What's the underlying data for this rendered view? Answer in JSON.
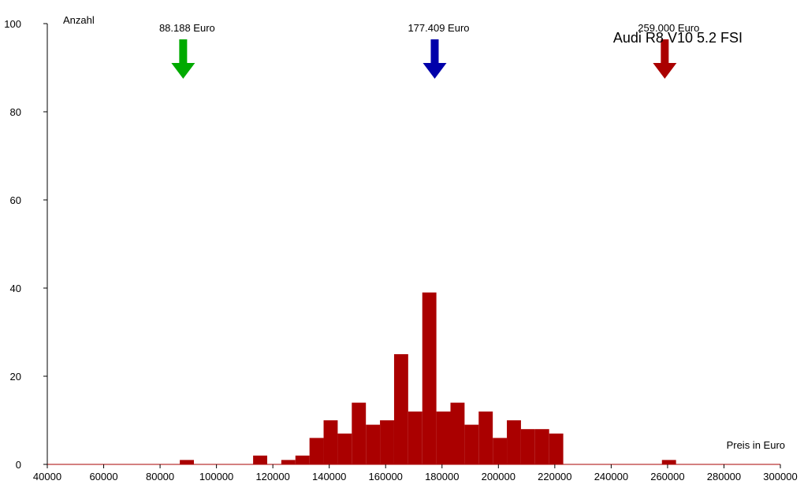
{
  "chart_data": {
    "type": "bar",
    "title": "Audi R8 V10 5.2 FSI",
    "xlabel": "Preis in Euro",
    "ylabel": "Anzahl",
    "xlim": [
      40000,
      300000
    ],
    "ylim": [
      0,
      100
    ],
    "x_ticks": [
      40000,
      60000,
      80000,
      100000,
      120000,
      140000,
      160000,
      180000,
      200000,
      220000,
      240000,
      260000,
      280000,
      300000
    ],
    "y_ticks": [
      0,
      20,
      40,
      60,
      80,
      100
    ],
    "grid": false,
    "bar_color": "#aa0000",
    "axis_color": "#000000",
    "baseline_color": "#aa0000",
    "bins": [
      {
        "x0": 87000,
        "x1": 92000,
        "value": 1
      },
      {
        "x0": 113000,
        "x1": 118000,
        "value": 2
      },
      {
        "x0": 123000,
        "x1": 128000,
        "value": 1
      },
      {
        "x0": 128000,
        "x1": 133000,
        "value": 2
      },
      {
        "x0": 133000,
        "x1": 138000,
        "value": 6
      },
      {
        "x0": 138000,
        "x1": 143000,
        "value": 10
      },
      {
        "x0": 143000,
        "x1": 148000,
        "value": 7
      },
      {
        "x0": 148000,
        "x1": 153000,
        "value": 14
      },
      {
        "x0": 153000,
        "x1": 158000,
        "value": 9
      },
      {
        "x0": 158000,
        "x1": 163000,
        "value": 10
      },
      {
        "x0": 163000,
        "x1": 168000,
        "value": 25
      },
      {
        "x0": 168000,
        "x1": 173000,
        "value": 12
      },
      {
        "x0": 173000,
        "x1": 178000,
        "value": 39
      },
      {
        "x0": 178000,
        "x1": 183000,
        "value": 12
      },
      {
        "x0": 183000,
        "x1": 188000,
        "value": 14
      },
      {
        "x0": 188000,
        "x1": 193000,
        "value": 9
      },
      {
        "x0": 193000,
        "x1": 198000,
        "value": 12
      },
      {
        "x0": 198000,
        "x1": 203000,
        "value": 6
      },
      {
        "x0": 203000,
        "x1": 208000,
        "value": 10
      },
      {
        "x0": 208000,
        "x1": 213000,
        "value": 8
      },
      {
        "x0": 213000,
        "x1": 218000,
        "value": 8
      },
      {
        "x0": 218000,
        "x1": 223000,
        "value": 7
      },
      {
        "x0": 258000,
        "x1": 263000,
        "value": 1
      }
    ],
    "markers": [
      {
        "label": "88.188 Euro",
        "value": 88188,
        "color": "#00aa00"
      },
      {
        "label": "177.409 Euro",
        "value": 177409,
        "color": "#0000aa"
      },
      {
        "label": "259.000 Euro",
        "value": 259000,
        "color": "#aa0000"
      }
    ]
  }
}
